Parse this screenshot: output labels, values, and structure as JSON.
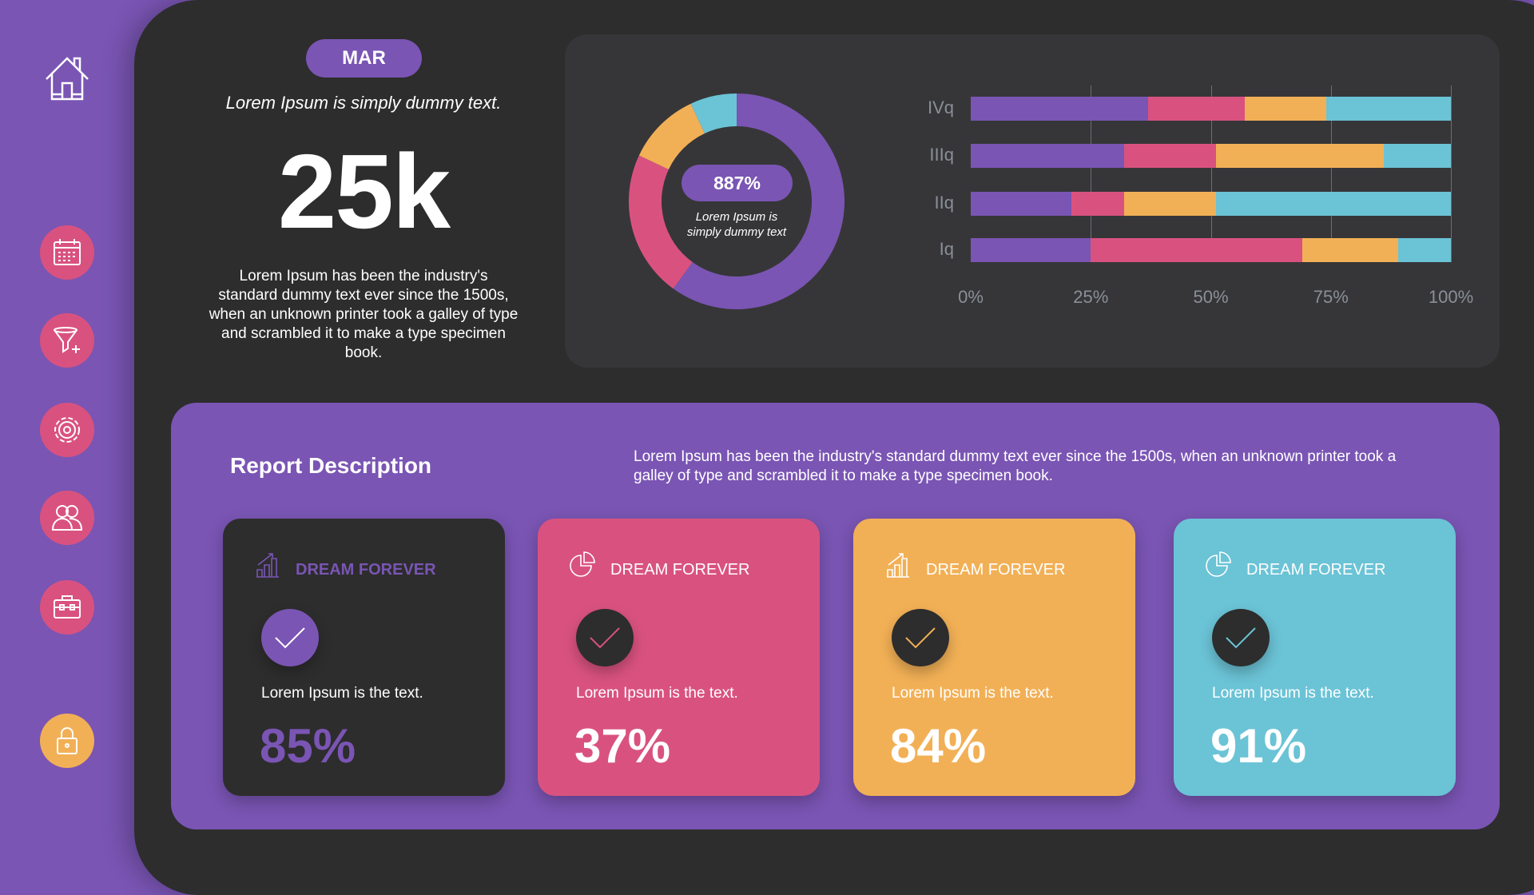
{
  "colors": {
    "purple": "#7a55b4",
    "pink": "#d9527f",
    "orange": "#f2b056",
    "cyan": "#6bc3d6",
    "dark": "#2d2d2d"
  },
  "sidebar": {
    "items": [
      {
        "icon": "home-icon"
      },
      {
        "icon": "calendar-icon"
      },
      {
        "icon": "funnel-add-icon"
      },
      {
        "icon": "gear-icon"
      },
      {
        "icon": "users-icon"
      },
      {
        "icon": "briefcase-icon"
      },
      {
        "icon": "lock-icon"
      }
    ]
  },
  "summary": {
    "month": "MAR",
    "subtitle": "Lorem Ipsum is simply dummy text.",
    "value": "25k",
    "description": "Lorem Ipsum has been the industry's standard dummy text ever since the 1500s, when an unknown printer took a galley of type and scrambled it to make a type specimen book."
  },
  "chart_data": [
    {
      "type": "pie",
      "variant": "donut",
      "center_value": "887%",
      "center_label": "Lorem Ipsum is simply dummy text",
      "values": [
        60,
        22,
        11,
        7
      ],
      "colors": [
        "#7a55b4",
        "#d9527f",
        "#f2b056",
        "#6bc3d6"
      ]
    },
    {
      "type": "bar",
      "orientation": "horizontal",
      "stacked": "percent",
      "categories": [
        "IVq",
        "IIIq",
        "IIq",
        "Iq"
      ],
      "series": [
        {
          "values": [
            37,
            32,
            21,
            25
          ],
          "color": "#7a55b4"
        },
        {
          "values": [
            20,
            19,
            11,
            44
          ],
          "color": "#d9527f"
        },
        {
          "values": [
            17,
            35,
            19,
            20
          ],
          "color": "#f2b056"
        },
        {
          "values": [
            26,
            14,
            49,
            11
          ],
          "color": "#6bc3d6"
        }
      ],
      "xticks": [
        "0%",
        "25%",
        "50%",
        "75%",
        "100%"
      ],
      "xlim": [
        0,
        100
      ],
      "grid": true
    }
  ],
  "report": {
    "title": "Report Description",
    "description": "Lorem Ipsum has been the industry's standard dummy text ever since the 1500s, when an unknown printer took a galley of type and scrambled it to make a type specimen book.",
    "cards": [
      {
        "title": "DREAM FOREVER",
        "text": "Lorem Ipsum is the text.",
        "value": "85%",
        "icon": "bar-chart-icon",
        "bg": "#2d2d2d"
      },
      {
        "title": "DREAM FOREVER",
        "text": "Lorem Ipsum is the text.",
        "value": "37%",
        "icon": "pie-chart-icon",
        "bg": "#d9527f"
      },
      {
        "title": "DREAM FOREVER",
        "text": "Lorem Ipsum is the text.",
        "value": "84%",
        "icon": "bar-chart-icon",
        "bg": "#f2b056"
      },
      {
        "title": "DREAM FOREVER",
        "text": "Lorem Ipsum is the text.",
        "value": "91%",
        "icon": "pie-chart-icon",
        "bg": "#6bc3d6"
      }
    ]
  }
}
